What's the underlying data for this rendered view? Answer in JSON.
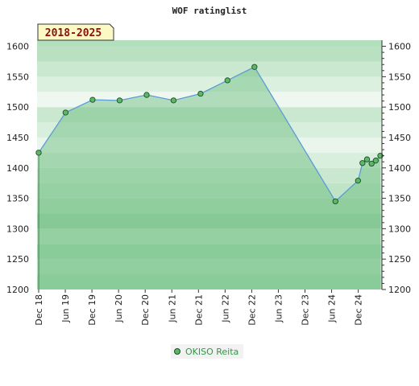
{
  "chart_data": {
    "type": "area",
    "title": "WOF ratinglist",
    "period_badge": "2018-2025",
    "xlabel": "",
    "ylabel": "",
    "x_ticks": [
      "Dec 18",
      "Jun 19",
      "Dec 19",
      "Jun 20",
      "Dec 20",
      "Jun 21",
      "Dec 21",
      "Jun 22",
      "Dec 22",
      "Jun 23",
      "Dec 23",
      "Jun 24",
      "Dec 24"
    ],
    "y_ticks": [
      1200,
      1250,
      1300,
      1350,
      1400,
      1450,
      1500,
      1550,
      1600
    ],
    "ylim": [
      1200,
      1610
    ],
    "grid": true,
    "legend_position": "bottom-center",
    "series": [
      {
        "name": "OKISO Reita",
        "x": [
          "2018-12",
          "2019-06",
          "2019-12",
          "2020-06",
          "2020-12",
          "2021-06",
          "2021-12",
          "2022-06",
          "2022-12",
          "2024-06",
          "2024-11",
          "2024-12",
          "2025-01",
          "2025-02",
          "2025-03",
          "2025-04"
        ],
        "values": [
          1425,
          1491,
          1512,
          1511,
          1520,
          1511,
          1522,
          1544,
          1566,
          1345,
          1379,
          1408,
          1414,
          1407,
          1412,
          1420
        ]
      }
    ]
  },
  "colors": {
    "line": "#5b9bd5",
    "marker": "#5cb868",
    "area": "#63bb79",
    "band_light": "#e8f5ea",
    "band_mid": "#b2dfbc"
  }
}
